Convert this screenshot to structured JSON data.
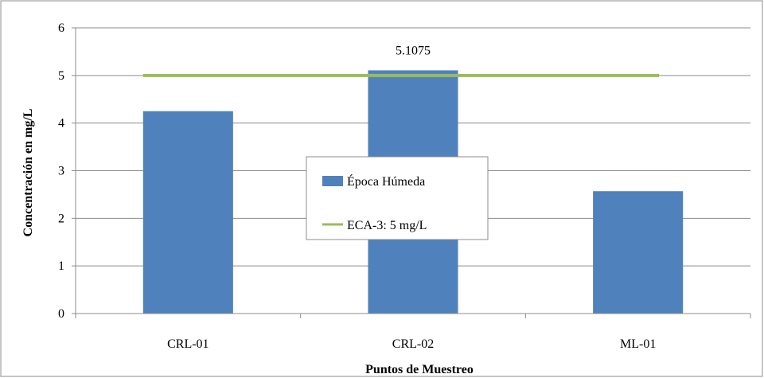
{
  "chart_data": {
    "type": "bar",
    "categories": [
      "CRL-01",
      "CRL-02",
      "ML-01"
    ],
    "series": [
      {
        "name": "Época Húmeda",
        "type": "bar",
        "values": [
          4.25,
          5.1075,
          2.57
        ],
        "color": "#4f81bd"
      },
      {
        "name": "ECA-3: 5 mg/L",
        "type": "line",
        "values": [
          5,
          5,
          5
        ],
        "color": "#9bbb59"
      }
    ],
    "data_labels": [
      {
        "category": "CRL-02",
        "text": "5.1075"
      }
    ],
    "xlabel": "Puntos de Muestreo",
    "ylabel": "Concentración en mg/L",
    "ylim": [
      0,
      6
    ],
    "yticks": [
      "0",
      "1",
      "2",
      "3",
      "4",
      "5",
      "6"
    ],
    "grid": "horizontal",
    "legend_position": "center"
  }
}
